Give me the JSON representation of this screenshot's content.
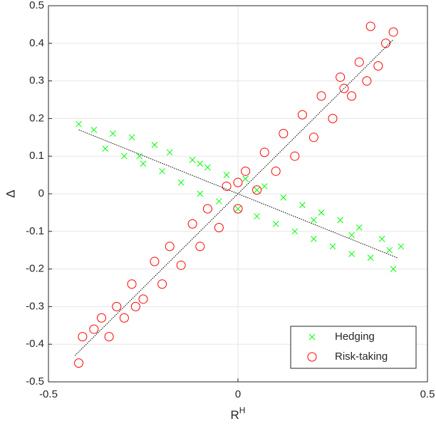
{
  "chart_data": {
    "type": "scatter",
    "xlabel": {
      "base": "R",
      "superscript": "H"
    },
    "ylabel": "Δ",
    "xlim": [
      -0.5,
      0.5
    ],
    "xticks": [
      -0.5,
      0,
      0.5
    ],
    "ylim": [
      -0.5,
      0.5
    ],
    "yticks": [
      -0.5,
      -0.4,
      -0.3,
      -0.2,
      -0.1,
      0,
      0.1,
      0.2,
      0.3,
      0.4,
      0.5
    ],
    "grid": true,
    "legend": "lower right",
    "series": [
      {
        "name": "Hedging",
        "color": "#00ff00",
        "marker": "x",
        "x": [
          -0.42,
          -0.38,
          -0.35,
          -0.33,
          -0.3,
          -0.28,
          -0.25,
          -0.22,
          -0.2,
          -0.18,
          -0.15,
          -0.12,
          -0.1,
          -0.08,
          -0.05,
          -0.03,
          0,
          0.02,
          0.05,
          0.07,
          0.1,
          0.12,
          0.15,
          0.17,
          0.2,
          0.22,
          0.25,
          0.27,
          0.3,
          0.32,
          0.35,
          0.38,
          0.4,
          0.41,
          0.43,
          -0.26,
          -0.1,
          0.05,
          0.2,
          0.3
        ],
        "values": [
          0.185,
          0.17,
          0.12,
          0.16,
          0.1,
          0.15,
          0.08,
          0.13,
          0.06,
          0.11,
          0.03,
          0.09,
          0.0,
          0.07,
          -0.02,
          0.05,
          -0.04,
          0.04,
          -0.06,
          0.02,
          -0.08,
          -0.01,
          -0.1,
          -0.03,
          -0.12,
          -0.05,
          -0.14,
          -0.07,
          -0.16,
          -0.09,
          -0.17,
          -0.12,
          -0.15,
          -0.2,
          -0.14,
          0.1,
          0.08,
          0.01,
          -0.07,
          -0.11
        ]
      },
      {
        "name": "Risk-taking",
        "color": "#ff0000",
        "marker": "o",
        "x": [
          -0.42,
          -0.41,
          -0.38,
          -0.36,
          -0.34,
          -0.32,
          -0.3,
          -0.28,
          -0.25,
          -0.22,
          -0.2,
          -0.18,
          -0.15,
          -0.12,
          -0.1,
          -0.08,
          -0.05,
          -0.03,
          0,
          0.02,
          0.05,
          0.07,
          0.1,
          0.12,
          0.15,
          0.17,
          0.2,
          0.22,
          0.25,
          0.27,
          0.3,
          0.32,
          0.34,
          0.35,
          0.37,
          0.39,
          0.41,
          -0.27,
          0,
          0.28
        ],
        "values": [
          -0.45,
          -0.38,
          -0.36,
          -0.33,
          -0.38,
          -0.3,
          -0.33,
          -0.24,
          -0.28,
          -0.18,
          -0.24,
          -0.14,
          -0.19,
          -0.08,
          -0.14,
          -0.04,
          -0.09,
          0.02,
          -0.04,
          0.06,
          0.01,
          0.11,
          0.06,
          0.16,
          0.1,
          0.21,
          0.15,
          0.26,
          0.2,
          0.31,
          0.26,
          0.35,
          0.3,
          0.445,
          0.34,
          0.4,
          0.43,
          -0.3,
          0.03,
          0.28
        ]
      }
    ],
    "fit_lines": [
      {
        "color": "#000000",
        "x": [
          -0.42,
          0.42
        ],
        "y": [
          0.17,
          -0.17
        ]
      },
      {
        "color": "#000000",
        "x": [
          -0.43,
          0.41
        ],
        "y": [
          -0.43,
          0.41
        ]
      }
    ]
  }
}
